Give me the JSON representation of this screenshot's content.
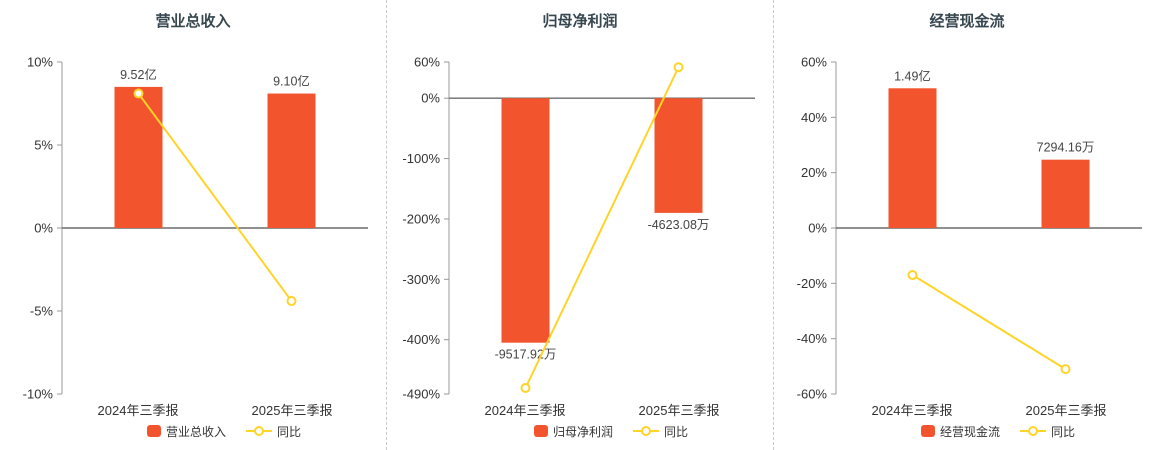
{
  "colors": {
    "bar": "#f2552d",
    "line": "#ffd428",
    "axis": "#999999",
    "zero_line": "#6b6b6b",
    "title": "#37474f",
    "text": "#333333",
    "value_label": "#444444",
    "separator": "#c9c9c9"
  },
  "chart_data": [
    {
      "type": "bar",
      "title": "营业总收入",
      "categories": [
        "2024年三季报",
        "2025年三季报"
      ],
      "bar_series": {
        "name": "营业总收入",
        "value_labels": [
          "9.52亿",
          "9.10亿"
        ],
        "bar_top_pct": [
          8.5,
          8.1
        ],
        "label_position": "above"
      },
      "line_series": {
        "name": "同比",
        "values_pct": [
          8.1,
          -4.4
        ]
      },
      "y_ticks_pct": [
        10,
        5,
        0,
        -5,
        -10
      ],
      "ylim_pct": [
        -10,
        10
      ],
      "grid": false,
      "legend_position": "bottom"
    },
    {
      "type": "bar",
      "title": "归母净利润",
      "categories": [
        "2024年三季报",
        "2025年三季报"
      ],
      "bar_series": {
        "name": "归母净利润",
        "value_labels": [
          "-9517.92万",
          "-4623.08万"
        ],
        "bar_top_pct": [
          -405,
          -190
        ],
        "label_position": "below"
      },
      "line_series": {
        "name": "同比",
        "values_pct": [
          -480,
          51.4
        ]
      },
      "y_ticks_pct": [
        60,
        0,
        -100,
        -200,
        -300,
        -400,
        -490
      ],
      "ylim_pct": [
        -490,
        60
      ],
      "grid": false,
      "legend_position": "bottom"
    },
    {
      "type": "bar",
      "title": "经营现金流",
      "categories": [
        "2024年三季报",
        "2025年三季报"
      ],
      "bar_series": {
        "name": "经营现金流",
        "value_labels": [
          "1.49亿",
          "7294.16万"
        ],
        "bar_top_pct": [
          50.5,
          24.7
        ],
        "label_position": "above"
      },
      "line_series": {
        "name": "同比",
        "values_pct": [
          -17,
          -51
        ]
      },
      "y_ticks_pct": [
        60,
        40,
        20,
        0,
        -20,
        -40,
        -60
      ],
      "ylim_pct": [
        -60,
        60
      ],
      "grid": false,
      "legend_position": "bottom"
    }
  ]
}
